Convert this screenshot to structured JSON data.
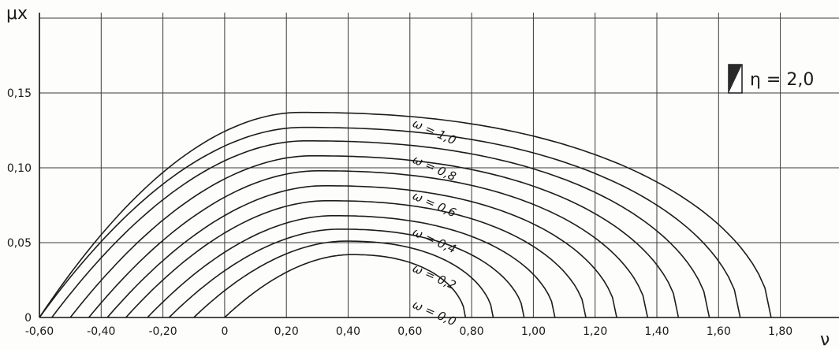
{
  "chart_data": {
    "type": "line",
    "xlabel": "ν",
    "ylabel": "μx",
    "xlim": [
      -0.6,
      1.8
    ],
    "ylim": [
      0,
      0.2
    ],
    "x_ticks": [
      "-0,60",
      "-0,40",
      "-0,20",
      "0",
      "0,20",
      "0,40",
      "0,60",
      "0,80",
      "1,00",
      "1,20",
      "1,40",
      "1,60",
      "1,80"
    ],
    "y_ticks": [
      "0",
      "0,05",
      "0,10",
      "0,15"
    ],
    "grid": true,
    "legend": {
      "text": "η = 2,0",
      "position": "top-right"
    },
    "series": [
      {
        "name": "ω = 0,0",
        "peak_x": 0.41,
        "peak_y": 0.042,
        "x_start": 0.0,
        "x_end": 0.78
      },
      {
        "name": "",
        "peak_x": 0.39,
        "peak_y": 0.051,
        "x_start": -0.1,
        "x_end": 0.87
      },
      {
        "name": "ω = 0,2",
        "peak_x": 0.37,
        "peak_y": 0.059,
        "x_start": -0.18,
        "x_end": 0.97
      },
      {
        "name": "",
        "peak_x": 0.35,
        "peak_y": 0.068,
        "x_start": -0.25,
        "x_end": 1.07
      },
      {
        "name": "ω = 0,4",
        "peak_x": 0.33,
        "peak_y": 0.078,
        "x_start": -0.32,
        "x_end": 1.17
      },
      {
        "name": "",
        "peak_x": 0.32,
        "peak_y": 0.088,
        "x_start": -0.38,
        "x_end": 1.27
      },
      {
        "name": "ω = 0,6",
        "peak_x": 0.3,
        "peak_y": 0.098,
        "x_start": -0.44,
        "x_end": 1.37
      },
      {
        "name": "",
        "peak_x": 0.28,
        "peak_y": 0.108,
        "x_start": -0.5,
        "x_end": 1.47
      },
      {
        "name": "ω = 0,8",
        "peak_x": 0.26,
        "peak_y": 0.118,
        "x_start": -0.56,
        "x_end": 1.57
      },
      {
        "name": "",
        "peak_x": 0.25,
        "peak_y": 0.127,
        "x_start": -0.6,
        "x_end": 1.67
      },
      {
        "name": "ω = 1,0",
        "peak_x": 0.24,
        "peak_y": 0.137,
        "x_start": -0.6,
        "x_end": 1.77
      }
    ],
    "curve_labels": [
      {
        "text": "ω = 1,0",
        "x": 0.62,
        "y": 0.12
      },
      {
        "text": "ω = 0,8",
        "x": 0.62,
        "y": 0.1
      },
      {
        "text": "ω = 0,6",
        "x": 0.62,
        "y": 0.08
      },
      {
        "text": "ω = 0,4",
        "x": 0.62,
        "y": 0.06
      },
      {
        "text": "ω = 0,2",
        "x": 0.62,
        "y": 0.04
      },
      {
        "text": "ω = 0,0",
        "x": 0.62,
        "y": 0.02
      }
    ]
  }
}
